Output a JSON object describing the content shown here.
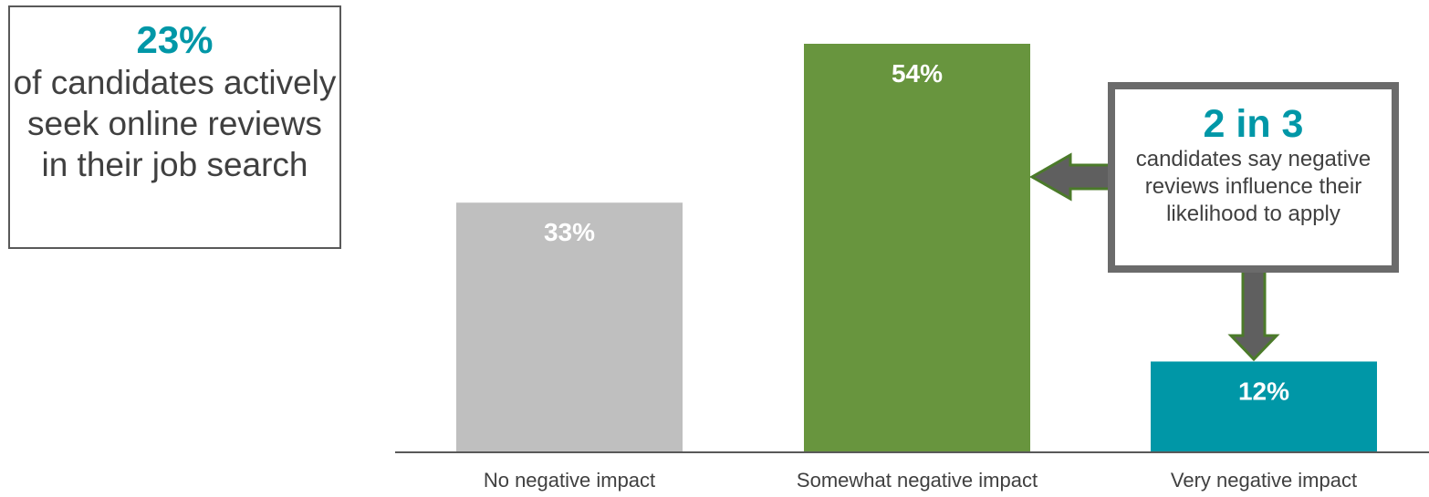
{
  "chart_data": {
    "type": "bar",
    "categories": [
      "No negative impact",
      "Somewhat negative impact",
      "Very negative impact"
    ],
    "values": [
      33,
      54,
      12
    ],
    "value_labels": [
      "33%",
      "54%",
      "12%"
    ],
    "colors": [
      "#BFBFBF",
      "#68953E",
      "#0097A7"
    ],
    "ylim": [
      0,
      54
    ]
  },
  "stat_box": {
    "value": "23%",
    "text": "of candidates actively seek online reviews in their job search"
  },
  "callout": {
    "value": "2 in 3",
    "text": "candidates say negative reviews influence their likelihood to apply"
  },
  "colors": {
    "accent": "#0097A7",
    "arrow": "#5f6f4a",
    "arrow_outline": "#4b7a2a",
    "axis": "#595959"
  }
}
